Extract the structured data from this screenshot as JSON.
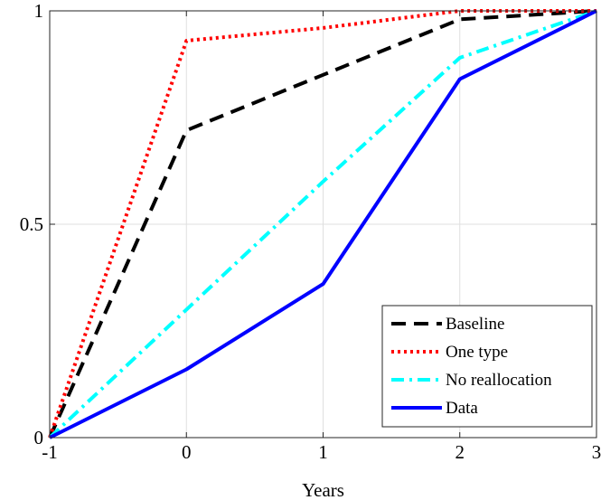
{
  "chart_data": {
    "type": "line",
    "title": "",
    "xlabel": "Years",
    "ylabel": "",
    "xlim": [
      -1,
      3
    ],
    "ylim": [
      0,
      1
    ],
    "x_ticks": [
      -1,
      0,
      1,
      2,
      3
    ],
    "x_tick_labels": [
      "-1",
      "0",
      "1",
      "2",
      "3"
    ],
    "y_ticks": [
      0,
      0.5,
      1
    ],
    "y_tick_labels": [
      "0",
      "0.5",
      "1"
    ],
    "grid": true,
    "legend_position": "bottom-right",
    "x": [
      -1,
      0,
      1,
      2,
      3
    ],
    "series": [
      {
        "name": "Baseline",
        "values": [
          0,
          0.72,
          0.85,
          0.98,
          1.0
        ],
        "color": "#000000",
        "dash": "dashed"
      },
      {
        "name": "One type",
        "values": [
          0,
          0.93,
          0.96,
          1.0,
          1.0
        ],
        "color": "#ff0000",
        "dash": "dotted"
      },
      {
        "name": "No reallocation",
        "values": [
          0,
          0.3,
          0.6,
          0.89,
          1.0
        ],
        "color": "#00ffff",
        "dash": "dashdot"
      },
      {
        "name": "Data",
        "values": [
          0,
          0.16,
          0.36,
          0.84,
          1.0
        ],
        "color": "#0000ff",
        "dash": "solid"
      }
    ]
  }
}
